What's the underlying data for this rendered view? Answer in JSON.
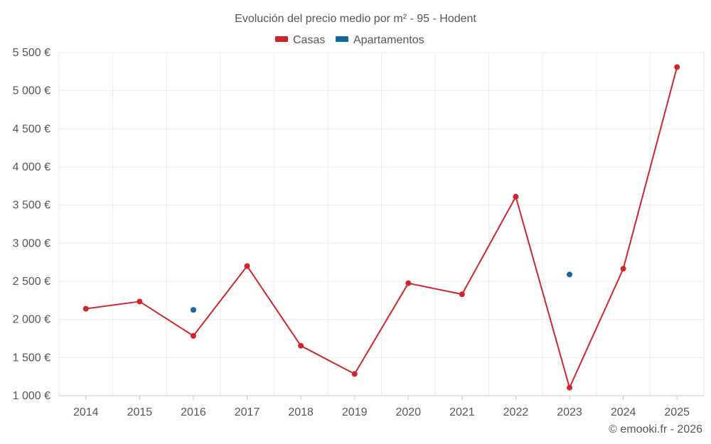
{
  "chart_data": {
    "type": "line",
    "title": "Evolución del precio medio por m² - 95 - Hodent",
    "categories": [
      "2014",
      "2015",
      "2016",
      "2017",
      "2018",
      "2019",
      "2020",
      "2021",
      "2022",
      "2023",
      "2024",
      "2025"
    ],
    "y_ticks": [
      1000,
      1500,
      2000,
      2500,
      3000,
      3500,
      4000,
      4500,
      5000,
      5500
    ],
    "y_tick_labels": [
      "1 000 €",
      "1 500 €",
      "2 000 €",
      "2 500 €",
      "3 000 €",
      "3 500 €",
      "4 000 €",
      "4 500 €",
      "5 000 €",
      "5 500 €"
    ],
    "ylim": [
      1000,
      5500
    ],
    "grid": true,
    "legend_position": "top-center",
    "series": [
      {
        "name": "Casas",
        "color": "#d0262b",
        "values": [
          2140,
          2235,
          1785,
          2700,
          1655,
          1285,
          2475,
          2330,
          3610,
          1105,
          2665,
          5310
        ]
      },
      {
        "name": "Apartamentos",
        "color": "#0e6aa0",
        "values": [
          null,
          null,
          2125,
          null,
          null,
          null,
          null,
          null,
          null,
          2590,
          null,
          null
        ]
      }
    ],
    "credit": "© emooki.fr - 2026"
  }
}
